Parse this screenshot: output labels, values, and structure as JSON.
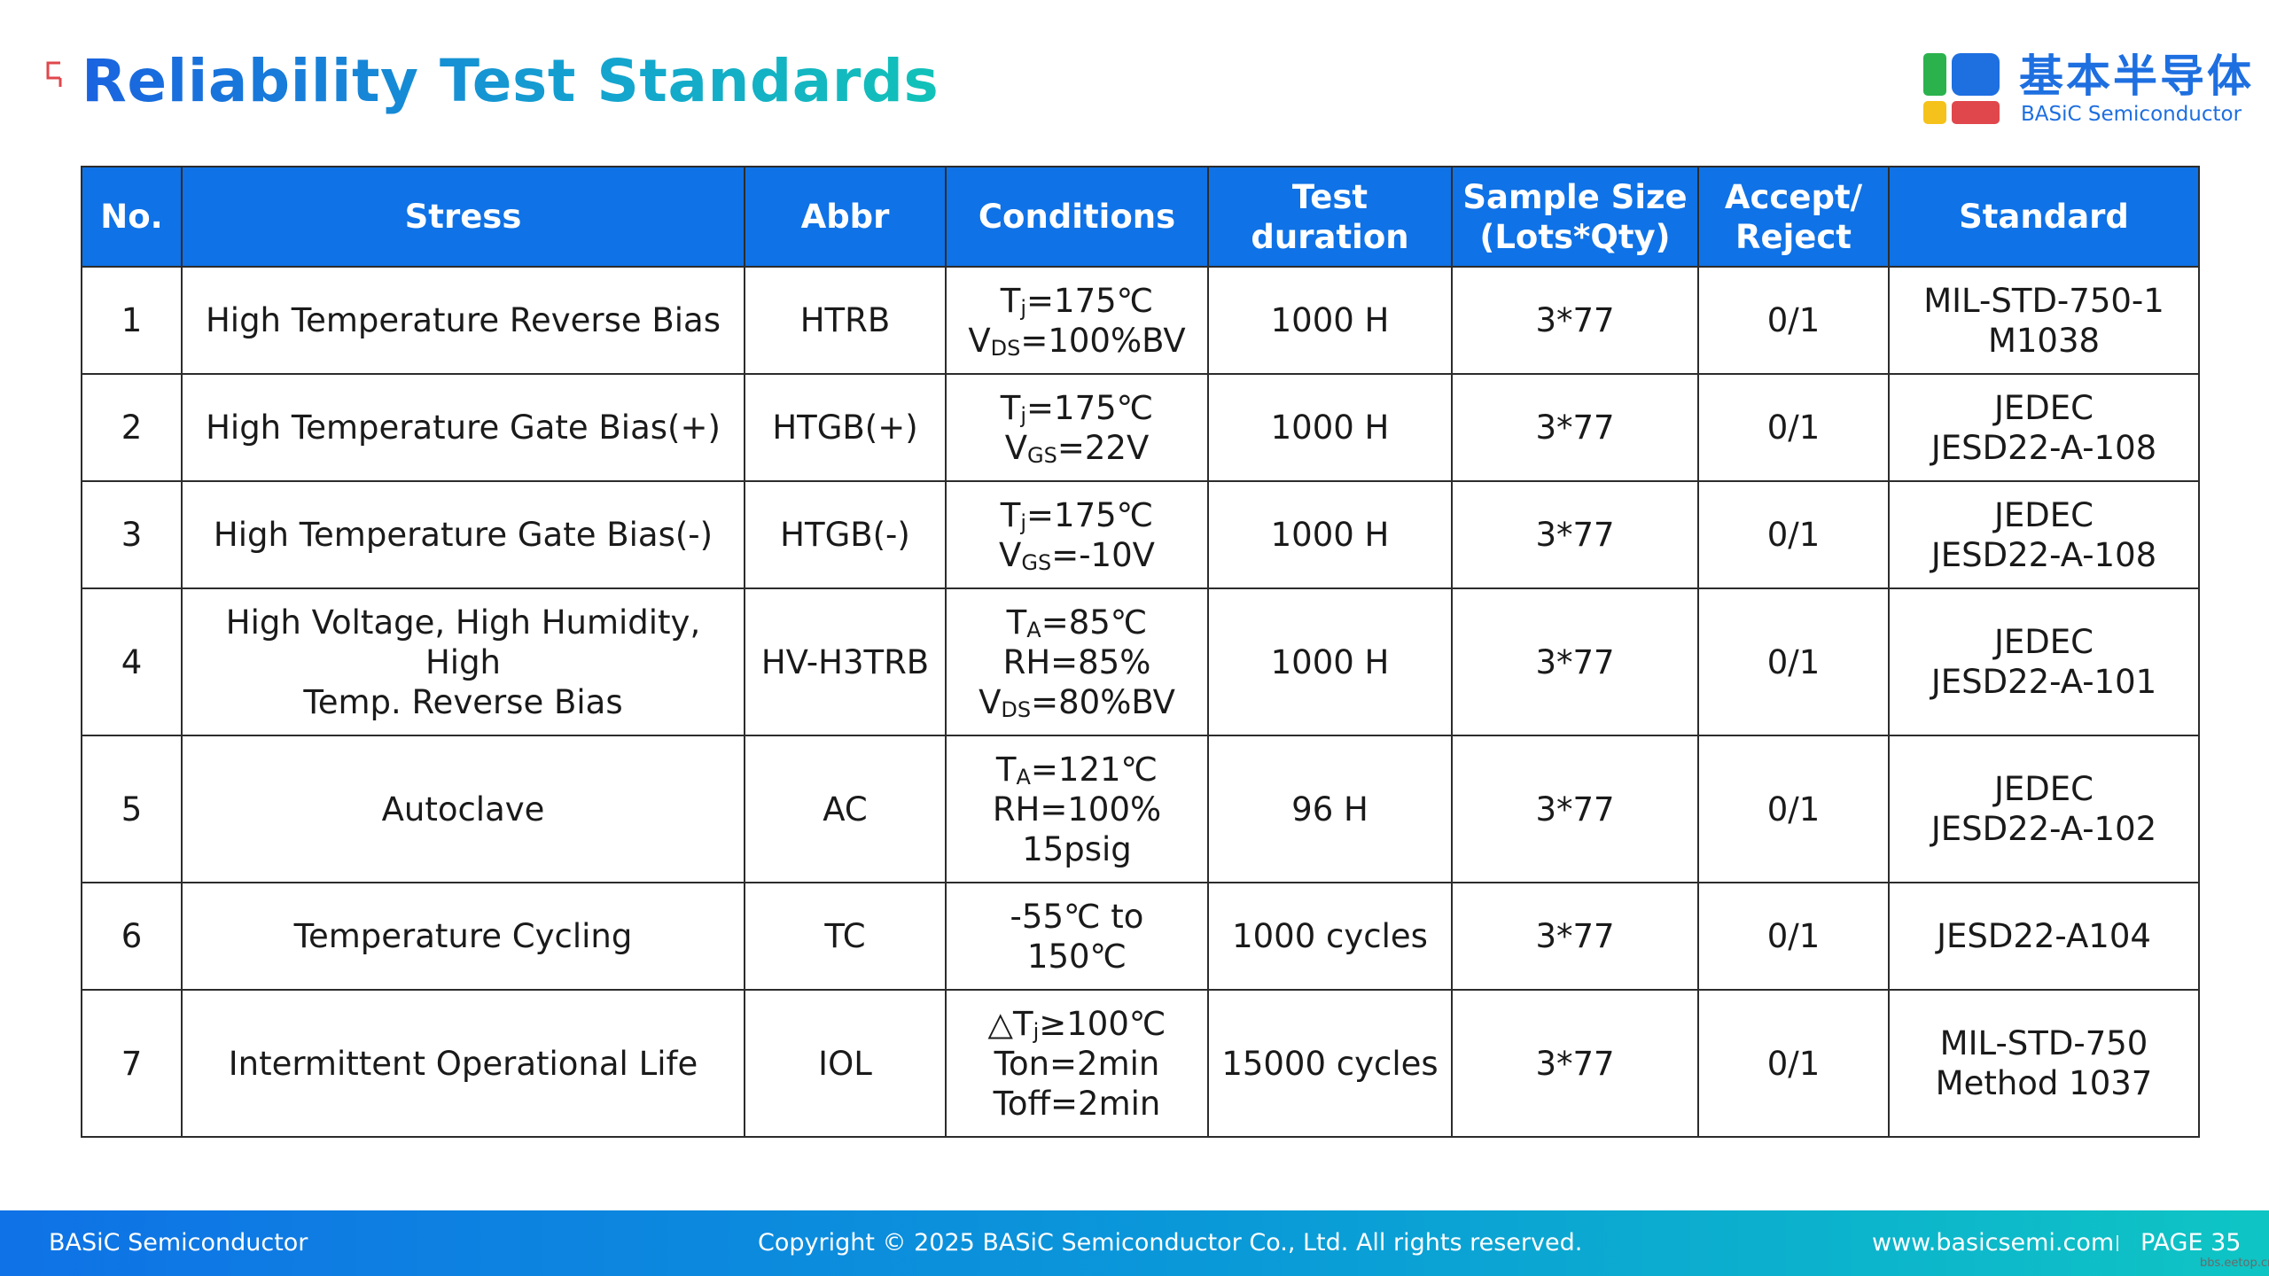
{
  "header": {
    "title": "Reliability Test Standards"
  },
  "logo": {
    "chinese_name": "基本半导体",
    "english_name": "BASiC Semiconductor"
  },
  "colors": {
    "table_header_bg": "#0f72e6",
    "title_gradient_start": "#1a63e0",
    "title_gradient_end": "#12c2b8",
    "logo_blue": "#1e6fe0",
    "logo_green": "#2bb24c",
    "logo_yellow": "#f4c21a",
    "logo_red": "#e0474c"
  },
  "table": {
    "headers": {
      "no": "No.",
      "stress": "Stress",
      "abbr": "Abbr",
      "conditions": "Conditions",
      "duration": "Test duration",
      "sample_line1": "Sample Size",
      "sample_line2": "(Lots*Qty)",
      "accept_line1": "Accept/",
      "accept_line2": "Reject",
      "standard": "Standard"
    },
    "rows": [
      {
        "no": "1",
        "stress_lines": [
          "High Temperature Reverse Bias"
        ],
        "abbr": "HTRB",
        "conditions": [
          {
            "main": "T",
            "sub": "j",
            "rest": "=175℃"
          },
          {
            "main": "V",
            "sub": "DS",
            "rest": "=100%BV"
          }
        ],
        "duration": "1000 H",
        "sample": "3*77",
        "accept": "0/1",
        "standard_lines": [
          "MIL-STD-750-1",
          "M1038"
        ]
      },
      {
        "no": "2",
        "stress_lines": [
          "High Temperature Gate Bias(+)"
        ],
        "abbr": "HTGB(+)",
        "conditions": [
          {
            "main": "T",
            "sub": "j",
            "rest": "=175℃"
          },
          {
            "main": "V",
            "sub": "GS",
            "rest": "=22V"
          }
        ],
        "duration": "1000 H",
        "sample": "3*77",
        "accept": "0/1",
        "standard_lines": [
          "JEDEC",
          "JESD22-A-108"
        ]
      },
      {
        "no": "3",
        "stress_lines": [
          "High Temperature Gate Bias(-)"
        ],
        "abbr": "HTGB(-)",
        "conditions": [
          {
            "main": "T",
            "sub": "j",
            "rest": "=175℃"
          },
          {
            "main": "V",
            "sub": "GS",
            "rest": "=-10V"
          }
        ],
        "duration": "1000 H",
        "sample": "3*77",
        "accept": "0/1",
        "standard_lines": [
          "JEDEC",
          "JESD22-A-108"
        ]
      },
      {
        "no": "4",
        "stress_lines": [
          "High Voltage, High Humidity, High",
          "Temp. Reverse Bias"
        ],
        "abbr": "HV-H3TRB",
        "conditions": [
          {
            "main": "T",
            "sub": "A",
            "rest": "=85℃"
          },
          {
            "main": "RH=85%"
          },
          {
            "main": "V",
            "sub": "DS",
            "rest": "=80%BV"
          }
        ],
        "duration": "1000 H",
        "sample": "3*77",
        "accept": "0/1",
        "standard_lines": [
          "JEDEC",
          "JESD22-A-101"
        ]
      },
      {
        "no": "5",
        "stress_lines": [
          "Autoclave"
        ],
        "abbr": "AC",
        "conditions": [
          {
            "main": "T",
            "sub": "A",
            "rest": "=121℃"
          },
          {
            "main": "RH=100%"
          },
          {
            "main": "15psig"
          }
        ],
        "duration": "96 H",
        "sample": "3*77",
        "accept": "0/1",
        "standard_lines": [
          "JEDEC",
          "JESD22-A-102"
        ]
      },
      {
        "no": "6",
        "stress_lines": [
          "Temperature Cycling"
        ],
        "abbr": "TC",
        "conditions": [
          {
            "main": "-55℃ to 150℃"
          }
        ],
        "duration": "1000 cycles",
        "sample": "3*77",
        "accept": "0/1",
        "standard_lines": [
          "JESD22-A104"
        ]
      },
      {
        "no": "7",
        "stress_lines": [
          "Intermittent Operational Life"
        ],
        "abbr": "IOL",
        "conditions": [
          {
            "main": "△T",
            "sub": "j",
            "rest": "≥100℃"
          },
          {
            "main": "Ton=2min"
          },
          {
            "main": "Toff=2min"
          }
        ],
        "duration": "15000 cycles",
        "sample": "3*77",
        "accept": "0/1",
        "standard_lines": [
          "MIL-STD-750",
          "Method 1037"
        ]
      }
    ]
  },
  "footer": {
    "company": "BASiC Semiconductor",
    "copyright": "Copyright © 2025 BASiC Semiconductor Co., Ltd. All rights reserved.",
    "website": "www.basicsemi.com",
    "page": "PAGE 35"
  },
  "watermark": "bbs.eetop.cn"
}
